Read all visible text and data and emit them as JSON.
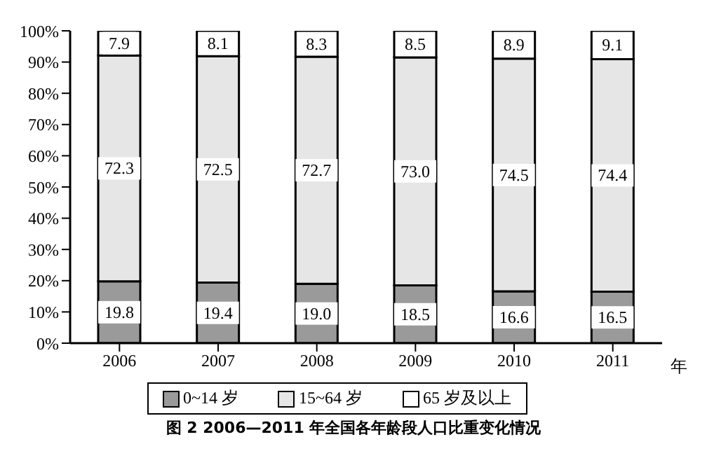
{
  "chart_data": {
    "type": "bar",
    "stacked": true,
    "title": "图 2 2006—2011 年全国各年龄段人口比重变化情况",
    "xlabel": "年",
    "categories": [
      "2006",
      "2007",
      "2008",
      "2009",
      "2010",
      "2011"
    ],
    "series": [
      {
        "name": "0~14 岁",
        "color": "#9a9a9a",
        "values": [
          19.8,
          19.4,
          19.0,
          18.5,
          16.6,
          16.5
        ],
        "value_labels": [
          "19.8",
          "19.4",
          "19.0",
          "18.5",
          "16.6",
          "16.5"
        ]
      },
      {
        "name": "15~64 岁",
        "color": "#e6e6e6",
        "values": [
          72.3,
          72.5,
          72.7,
          73.0,
          74.5,
          74.4
        ],
        "value_labels": [
          "72.3",
          "72.5",
          "72.7",
          "73.0",
          "74.5",
          "74.4"
        ]
      },
      {
        "name": "65 岁及以上",
        "color": "#ffffff",
        "values": [
          7.9,
          8.1,
          8.3,
          8.5,
          8.9,
          9.1
        ],
        "value_labels": [
          "7.9",
          "8.1",
          "8.3",
          "8.5",
          "8.9",
          "9.1"
        ]
      }
    ],
    "ylim": [
      0,
      100
    ],
    "yticks": [
      {
        "value": 0,
        "label": "0%"
      },
      {
        "value": 10,
        "label": "10%"
      },
      {
        "value": 20,
        "label": "20%"
      },
      {
        "value": 30,
        "label": "30%"
      },
      {
        "value": 40,
        "label": "40%"
      },
      {
        "value": 50,
        "label": "50%"
      },
      {
        "value": 60,
        "label": "60%"
      },
      {
        "value": 70,
        "label": "70%"
      },
      {
        "value": 80,
        "label": "80%"
      },
      {
        "value": 90,
        "label": "90%"
      },
      {
        "value": 100,
        "label": "100%"
      }
    ],
    "grid": false,
    "legend": "bottom"
  }
}
